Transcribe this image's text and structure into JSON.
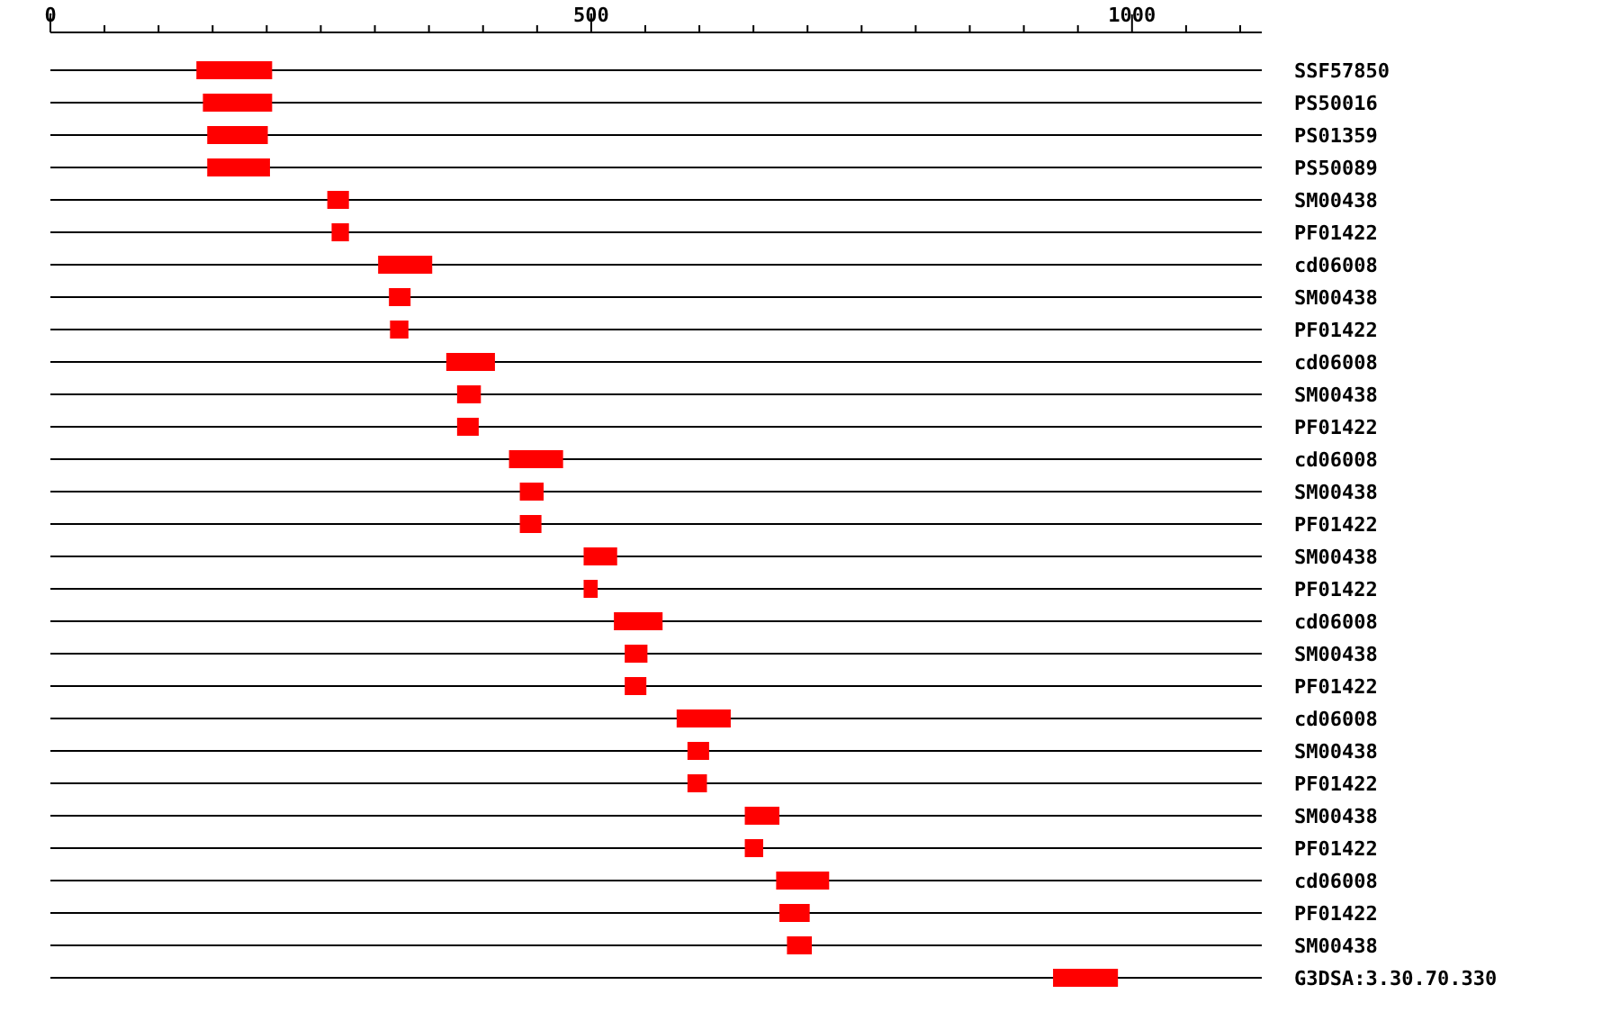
{
  "chart_data": {
    "type": "bar",
    "orientation": "horizontal",
    "grid": "y",
    "color": "#ff0000",
    "categories": [
      "SSF57850",
      "PS50016",
      "PS01359",
      "PS50089",
      "SM00438",
      "PF01422",
      "cd06008",
      "SM00438",
      "PF01422",
      "cd06008",
      "SM00438",
      "PF01422",
      "cd06008",
      "SM00438",
      "PF01422",
      "SM00438",
      "PF01422",
      "cd06008",
      "SM00438",
      "PF01422",
      "cd06008",
      "SM00438",
      "PF01422",
      "SM00438",
      "PF01422",
      "cd06008",
      "PF01422",
      "SM00438",
      "G3DSA:3.30.70.330"
    ],
    "base": [
      135,
      141,
      145,
      145,
      256,
      260,
      303,
      313,
      314,
      366,
      376,
      376,
      424,
      434,
      434,
      493,
      493,
      521,
      531,
      531,
      579,
      589,
      589,
      642,
      642,
      671,
      674,
      681,
      927
    ],
    "values": [
      70,
      64,
      56,
      58,
      20,
      16,
      50,
      20,
      17,
      45,
      22,
      20,
      50,
      22,
      20,
      31,
      13,
      45,
      21,
      20,
      50,
      20,
      18,
      32,
      17,
      49,
      28,
      23,
      60
    ],
    "xlim": [
      0,
      1120
    ],
    "xticks": [
      0,
      {
        "value": 50,
        "label": null
      },
      {
        "value": 100,
        "label": null
      },
      {
        "value": 150,
        "label": null
      },
      {
        "value": 200,
        "label": null
      },
      {
        "value": 250,
        "label": null
      },
      {
        "value": 300,
        "label": null
      },
      {
        "value": 350,
        "label": null
      },
      {
        "value": 400,
        "label": null
      },
      {
        "value": 450,
        "label": null
      },
      500,
      {
        "value": 550,
        "label": null
      },
      {
        "value": 600,
        "label": null
      },
      {
        "value": 650,
        "label": null
      },
      {
        "value": 700,
        "label": null
      },
      {
        "value": 750,
        "label": null
      },
      {
        "value": 800,
        "label": null
      },
      {
        "value": 850,
        "label": null
      },
      {
        "value": 900,
        "label": null
      },
      {
        "value": 950,
        "label": null
      },
      1000,
      {
        "value": 1050,
        "label": null
      },
      {
        "value": 1100,
        "label": null
      }
    ]
  }
}
